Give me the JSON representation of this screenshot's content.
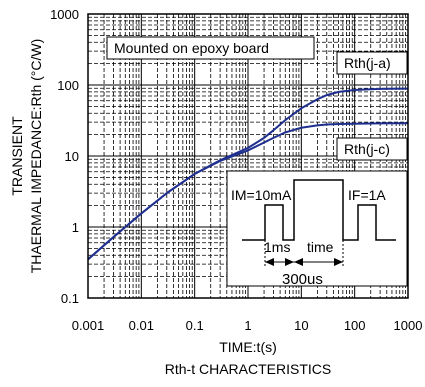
{
  "chart_data": {
    "type": "line",
    "title": "Rth-t CHARACTERISTICS",
    "xlabel": "TIME:t(s)",
    "ylabel_lines": [
      "TRANSIENT",
      "THAERMAL IMPEDANCE:Rth (°C/W)"
    ],
    "x_scale": "log",
    "y_scale": "log",
    "xlim": [
      0.001,
      1000
    ],
    "ylim": [
      0.1,
      1000
    ],
    "grid": true,
    "x_ticks": [
      {
        "value": 0.001,
        "label": "0.001"
      },
      {
        "value": 0.01,
        "label": "0.01"
      },
      {
        "value": 0.1,
        "label": "0.1"
      },
      {
        "value": 1,
        "label": "1"
      },
      {
        "value": 10,
        "label": "10"
      },
      {
        "value": 100,
        "label": "100"
      },
      {
        "value": 1000,
        "label": "1000"
      }
    ],
    "y_ticks": [
      {
        "value": 0.1,
        "label": "0.1"
      },
      {
        "value": 1,
        "label": "1"
      },
      {
        "value": 10,
        "label": "10"
      },
      {
        "value": 100,
        "label": "100"
      },
      {
        "value": 1000,
        "label": "1000"
      }
    ],
    "annotation": "Mounted on epoxy board",
    "series": [
      {
        "name": "Rth(j-a)",
        "color": "#1f2f8f",
        "x": [
          0.001,
          0.003,
          0.01,
          0.03,
          0.1,
          0.3,
          1,
          2,
          3,
          5,
          10,
          20,
          30,
          50,
          100,
          200,
          300,
          500,
          1000
        ],
        "y": [
          0.35,
          0.72,
          1.55,
          3.0,
          5.6,
          8.7,
          13,
          18,
          23,
          32,
          47,
          63,
          72,
          80,
          85,
          87,
          88,
          88.5,
          89
        ]
      },
      {
        "name": "Rth(j-c)",
        "color": "#1f2f8f",
        "x": [
          0.001,
          0.003,
          0.01,
          0.03,
          0.1,
          0.3,
          1,
          2,
          3,
          5,
          10,
          20,
          30,
          50,
          100,
          200,
          300,
          500,
          1000
        ],
        "y": [
          0.35,
          0.72,
          1.55,
          3.0,
          5.6,
          8.5,
          12,
          15.5,
          18,
          21.5,
          25,
          27,
          27.8,
          28.2,
          28.5,
          28.7,
          28.8,
          28.9,
          29
        ]
      }
    ],
    "inset": {
      "im_label": "IM=10mA",
      "if_label": "IF=1A",
      "ms_label": "1ms",
      "time_label": "time",
      "us_label": "300us"
    }
  }
}
